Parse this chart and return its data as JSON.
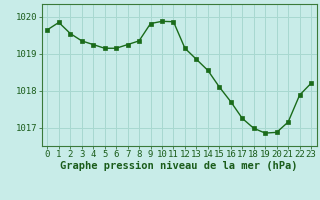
{
  "x": [
    0,
    1,
    2,
    3,
    4,
    5,
    6,
    7,
    8,
    9,
    10,
    11,
    12,
    13,
    14,
    15,
    16,
    17,
    18,
    19,
    20,
    21,
    22,
    23
  ],
  "y": [
    1019.65,
    1019.85,
    1019.55,
    1019.35,
    1019.25,
    1019.15,
    1019.15,
    1019.25,
    1019.35,
    1019.82,
    1019.88,
    1019.87,
    1019.15,
    1018.85,
    1018.55,
    1018.1,
    1017.7,
    1017.25,
    1016.98,
    1016.85,
    1016.87,
    1017.15,
    1017.88,
    1018.2
  ],
  "line_color": "#1a6b1a",
  "marker_color": "#1a6b1a",
  "bg_color": "#c8ece8",
  "grid_color": "#a8d8d0",
  "title": "Graphe pression niveau de la mer (hPa)",
  "ylabel_ticks": [
    1017,
    1018,
    1019,
    1020
  ],
  "ylim": [
    1016.5,
    1020.35
  ],
  "xlim": [
    -0.5,
    23.5
  ],
  "xlabel_ticks": [
    0,
    1,
    2,
    3,
    4,
    5,
    6,
    7,
    8,
    9,
    10,
    11,
    12,
    13,
    14,
    15,
    16,
    17,
    18,
    19,
    20,
    21,
    22,
    23
  ],
  "title_fontsize": 7.5,
  "tick_fontsize": 6.5,
  "line_width": 1.0,
  "marker_size": 2.5
}
